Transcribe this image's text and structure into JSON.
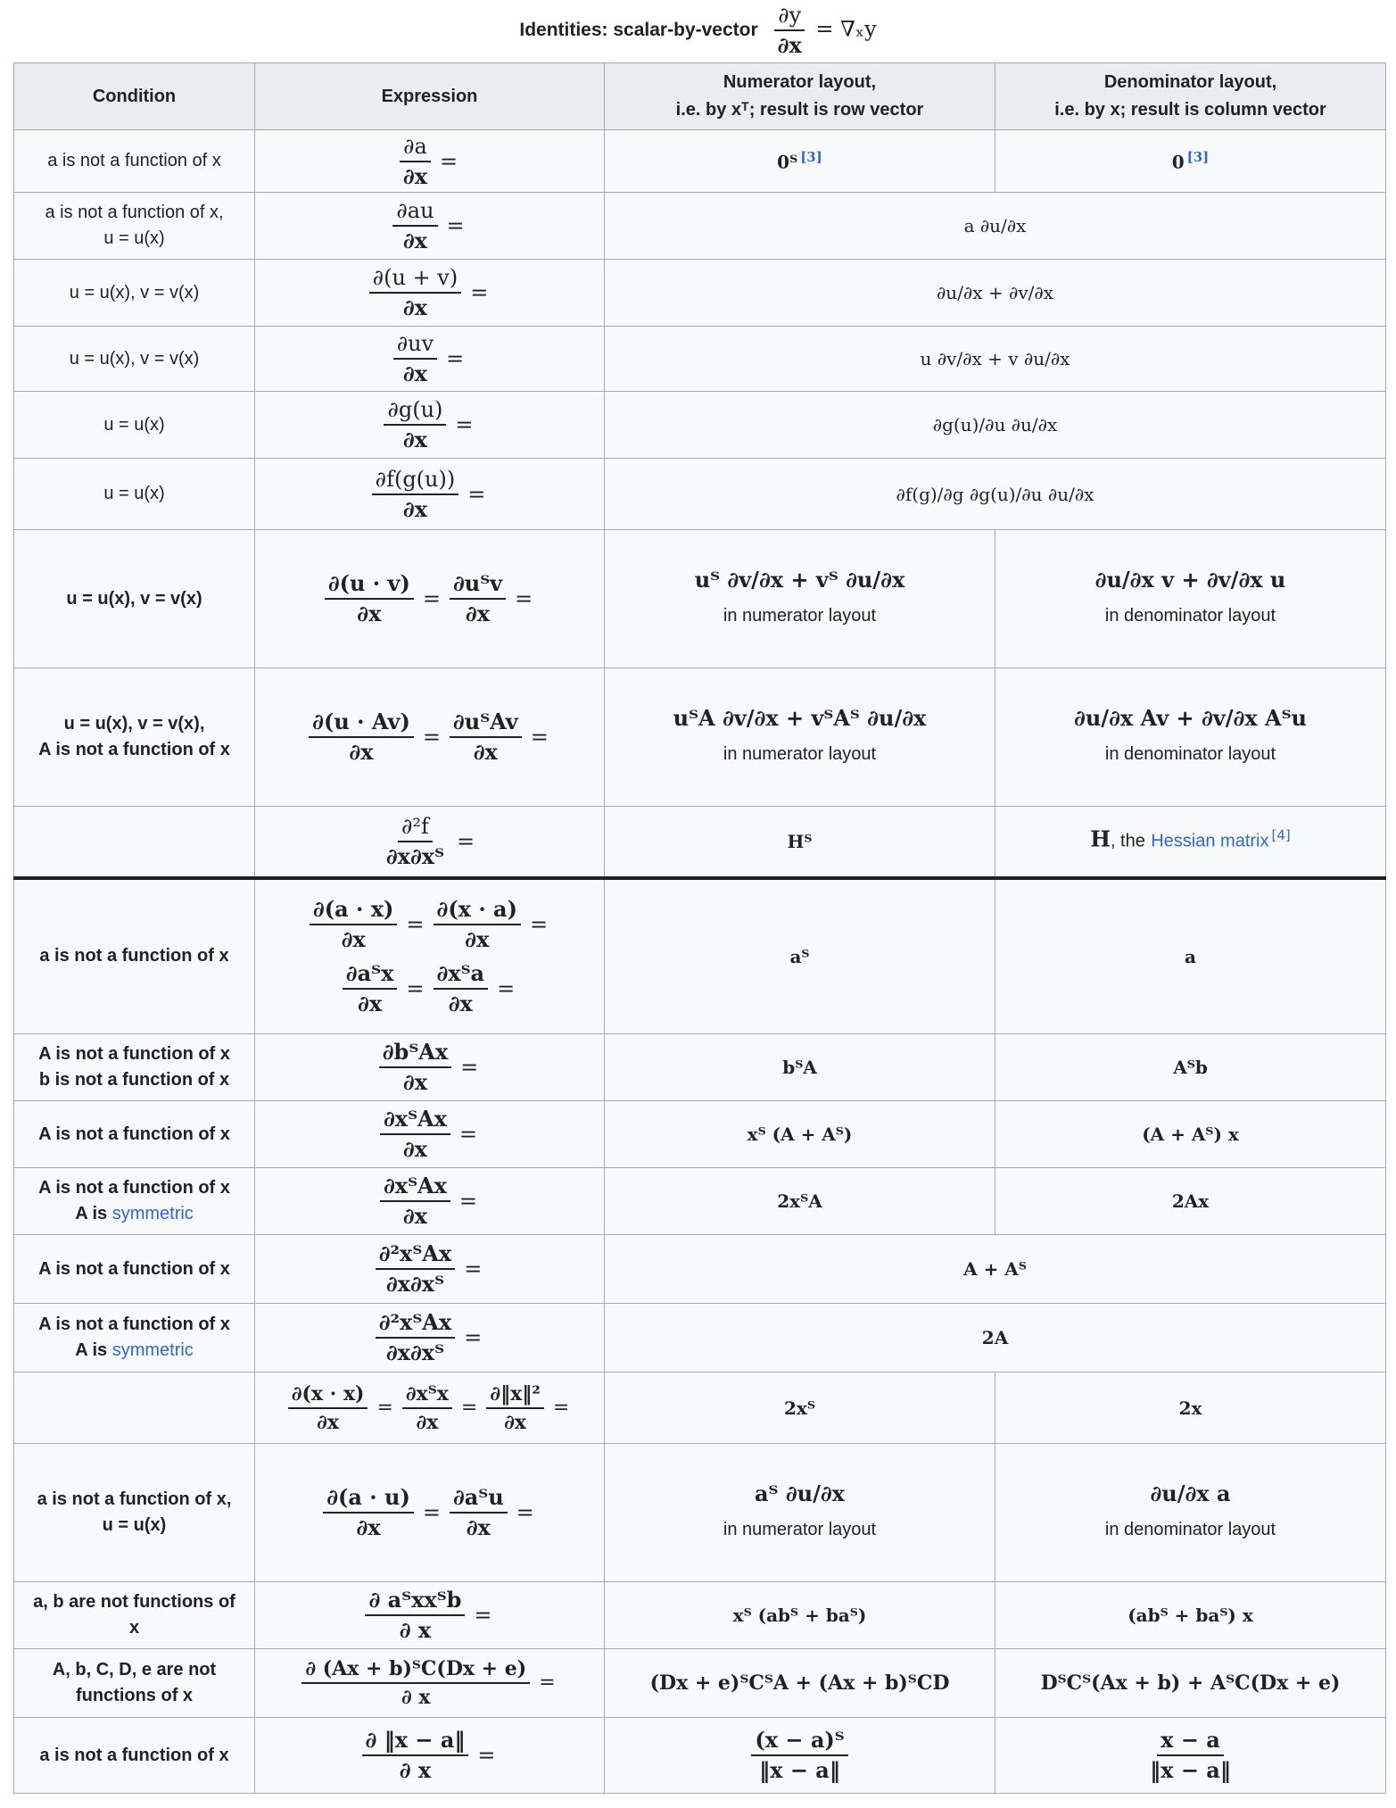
{
  "caption": {
    "text": "Identities: scalar-by-vector",
    "formula_num": "∂y",
    "formula_den": "∂x",
    "formula_rhs": "= ∇ₓy"
  },
  "headers": {
    "condition": "Condition",
    "expression": "Expression",
    "numerator_line1": "Numerator layout,",
    "numerator_line2": "i.e. by xᵀ; result is row vector",
    "denominator_line1": "Denominator layout,",
    "denominator_line2": "i.e. by x; result is column vector"
  },
  "labels": {
    "in_numerator": "in numerator layout",
    "in_denominator": "in denominator layout",
    "ref3": "[3]",
    "ref4": "[4]",
    "hessian": "Hessian matrix",
    "the": ", the",
    "symmetric": "symmetric"
  },
  "rows": [
    {
      "cond": "a is not a function of x",
      "num": "∂a",
      "den": "∂x",
      "nl": "0ᵀ",
      "dl": "0"
    },
    {
      "cond1": "a is not a function of x,",
      "cond2": "u = u(x)",
      "num": "∂au",
      "den": "∂x",
      "both": "a ∂u/∂x"
    },
    {
      "cond": "u = u(x), v = v(x)",
      "num": "∂(u + v)",
      "den": "∂x",
      "both": "∂u/∂x + ∂v/∂x"
    },
    {
      "cond": "u = u(x), v = v(x)",
      "num": "∂uv",
      "den": "∂x",
      "both": "u ∂v/∂x + v ∂u/∂x"
    },
    {
      "cond": "u = u(x)",
      "num": "∂g(u)",
      "den": "∂x",
      "both": "∂g(u)/∂u ∂u/∂x"
    },
    {
      "cond": "u = u(x)",
      "num": "∂f(g(u))",
      "den": "∂x",
      "both": "∂f(g)/∂g ∂g(u)/∂u ∂u/∂x"
    },
    {
      "cond": "u = u(x), v = v(x)",
      "num1": "∂(u · v)",
      "num2": "∂uᵀv",
      "den": "∂x",
      "nl": "uᵀ ∂v/∂x + vᵀ ∂u/∂x",
      "dl": "∂u/∂x v + ∂v/∂x u"
    },
    {
      "cond1": "u = u(x), v = v(x),",
      "cond2": "A is not a function of x",
      "num1": "∂(u · Av)",
      "num2": "∂uᵀAv",
      "den": "∂x",
      "nl": "uᵀA ∂v/∂x + vᵀAᵀ ∂u/∂x",
      "dl": "∂u/∂x Av + ∂v/∂x Aᵀu"
    },
    {
      "cond": "",
      "num": "∂²f",
      "den": "∂x∂xᵀ",
      "nl": "Hᵀ",
      "dl": "H"
    },
    {
      "cond": "a is not a function of x",
      "num1": "∂(a · x)",
      "num2": "∂(x · a)",
      "num3": "∂aᵀx",
      "num4": "∂xᵀa",
      "den": "∂x",
      "nl": "aᵀ",
      "dl": "a"
    },
    {
      "cond1": "A is not a function of x",
      "cond2": "b is not a function of x",
      "num": "∂bᵀAx",
      "den": "∂x",
      "nl": "bᵀA",
      "dl": "Aᵀb"
    },
    {
      "cond": "A is not a function of x",
      "num": "∂xᵀAx",
      "den": "∂x",
      "nl": "xᵀ (A + Aᵀ)",
      "dl": "(A + Aᵀ) x"
    },
    {
      "cond1": "A is not a function of x",
      "cond2a": "A is",
      "num": "∂xᵀAx",
      "den": "∂x",
      "nl": "2xᵀA",
      "dl": "2Ax"
    },
    {
      "cond": "A is not a function of x",
      "num": "∂²xᵀAx",
      "den": "∂x∂xᵀ",
      "both": "A + Aᵀ"
    },
    {
      "cond1": "A is not a function of x",
      "cond2a": "A is",
      "num": "∂²xᵀAx",
      "den": "∂x∂xᵀ",
      "both": "2A"
    },
    {
      "cond": "",
      "num1": "∂(x · x)",
      "num2": "∂xᵀx",
      "num3": "∂‖x‖²",
      "den": "∂x",
      "nl": "2xᵀ",
      "dl": "2x"
    },
    {
      "cond1": "a is not a function of x,",
      "cond2": "u = u(x)",
      "num1": "∂(a · u)",
      "num2": "∂aᵀu",
      "den": "∂x",
      "nl": "aᵀ ∂u/∂x",
      "dl": "∂u/∂x a"
    },
    {
      "cond1": "a, b are not functions of",
      "cond2": "x",
      "num": "∂ aᵀxxᵀb",
      "den": "∂ x",
      "nl": "xᵀ (abᵀ + baᵀ)",
      "dl": "(abᵀ + baᵀ) x"
    },
    {
      "cond1": "A, b, C, D, e are not",
      "cond2": "functions of x",
      "num": "∂ (Ax + b)ᵀC(Dx + e)",
      "den": "∂ x",
      "nl": "(Dx + e)ᵀCᵀA + (Ax + b)ᵀCD",
      "dl": "DᵀCᵀ(Ax + b) + AᵀC(Dx + e)"
    },
    {
      "cond": "a is not a function of x",
      "num": "∂ ‖x − a‖",
      "den": "∂ x",
      "nl_num": "(x − a)ᵀ",
      "nl_den": "‖x − a‖",
      "dl_num": "x − a",
      "dl_den": "‖x − a‖"
    }
  ]
}
